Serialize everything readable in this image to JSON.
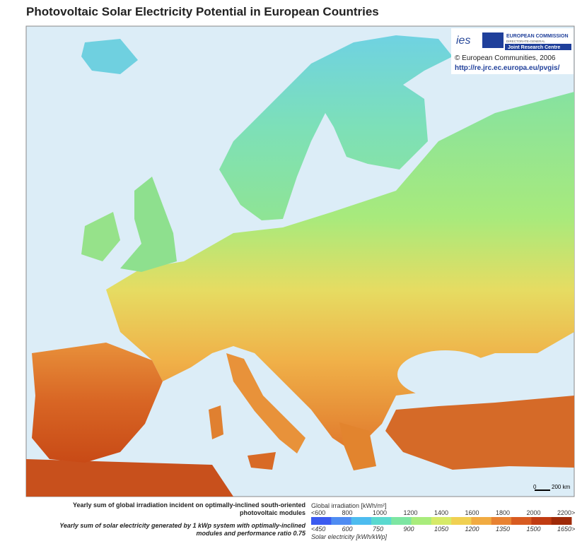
{
  "title": "Photovoltaic Solar Electricity Potential in European Countries",
  "logo": {
    "ies": "ies",
    "commission": "EUROPEAN COMMISSION",
    "directorate": "DIRECTORATE-GENERAL",
    "jrc": "Joint Research Centre",
    "copyright": "© European Communities, 2006",
    "url": "http://re.jrc.ec.europa.eu/pvgis/"
  },
  "scale": {
    "zero": "0",
    "distance": "200 km"
  },
  "legend": {
    "irradiation_caption": [
      "Yearly sum of global irradiation incident on optimally-inclined south-oriented",
      "photovoltaic modules"
    ],
    "electricity_caption": [
      "Yearly sum of solar electricity generated by 1 kWp system with optimally-inclined",
      "modules and performance ratio 0.75"
    ],
    "irradiation_title": "Global irradiation [kWh/m²]",
    "irradiation_labels": [
      "<600",
      "800",
      "1000",
      "1200",
      "1400",
      "1600",
      "1800",
      "2000",
      "2200>"
    ],
    "electricity_labels": [
      "<450",
      "600",
      "750",
      "900",
      "1050",
      "1200",
      "1350",
      "1500",
      "1650>"
    ],
    "electricity_title": "Solar electricity [kWh/kWp]",
    "colors": [
      "#3b5bf0",
      "#4f8cf2",
      "#4dbcef",
      "#5ad9cf",
      "#7de6a2",
      "#a9ec7c",
      "#d6ea68",
      "#f0d052",
      "#f1ab42",
      "#e88232",
      "#d85b21",
      "#c13c12",
      "#9f2a08"
    ]
  }
}
